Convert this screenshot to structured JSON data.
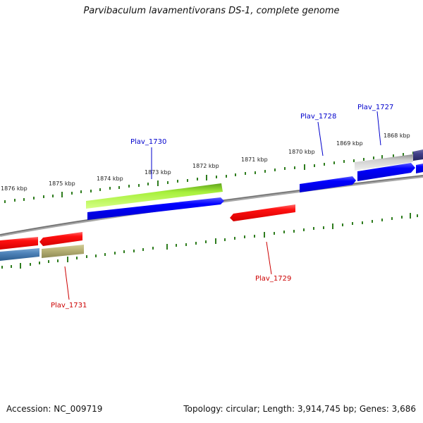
{
  "title": "Parvibaculum lavamentivorans DS-1, complete genome",
  "footer": {
    "accession": "Accession: NC_009719",
    "topology": "Topology: circular; Length: 3,914,745 bp; Genes: 3,686"
  },
  "scale_labels": [
    "1868 kbp",
    "1869 kbp",
    "1870 kbp",
    "1871 kbp",
    "1872 kbp",
    "1873 kbp",
    "1874 kbp",
    "1875 kbp",
    "1876 kbp"
  ],
  "gene_labels": {
    "plav_1727": "Plav_1727",
    "plav_1728": "Plav_1728",
    "plav_1729": "Plav_1729",
    "plav_1730": "Plav_1730",
    "plav_1731": "Plav_1731"
  },
  "colors": {
    "plus_label": "#0000cc",
    "minus_label": "#cc0000",
    "tick": "#2f7d1f",
    "backbone": "#8a8a8a",
    "blue": "#0000ff",
    "red": "#ff1010",
    "green": "#a7f03b",
    "grey": "#cfcfcf",
    "navy": "#403f88",
    "steel": "#4e82b8",
    "khaki": "#b8b276"
  }
}
